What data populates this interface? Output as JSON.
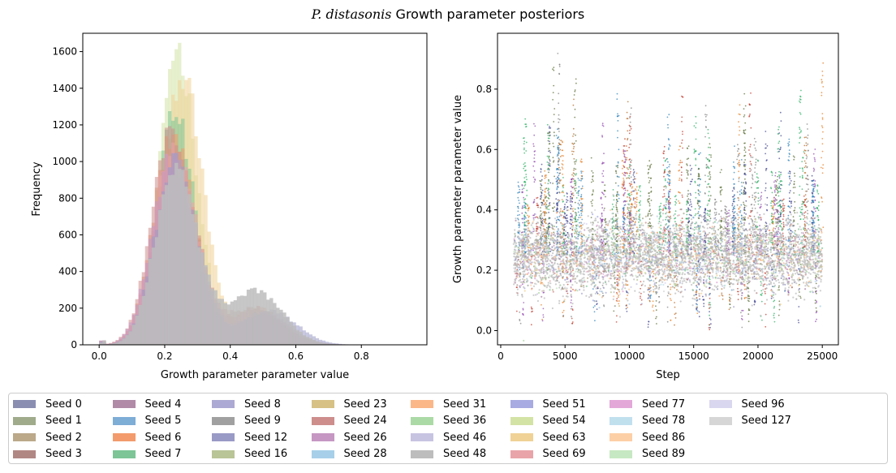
{
  "figure": {
    "title_italic": "P. distasonis",
    "title_rest": " Growth parameter posteriors"
  },
  "chart_data": [
    {
      "type": "histogram",
      "xlabel": "Growth parameter parameter value",
      "ylabel": "Frequency",
      "xlim": [
        -0.05,
        1.0
      ],
      "ylim": [
        0,
        1700
      ],
      "xticks": [
        0.0,
        0.2,
        0.4,
        0.6,
        0.8
      ],
      "xtick_labels": [
        "0.0",
        "0.2",
        "0.4",
        "0.6",
        "0.8"
      ],
      "yticks": [
        0,
        200,
        400,
        600,
        800,
        1000,
        1200,
        1400,
        1600
      ],
      "ytick_labels": [
        "0",
        "200",
        "400",
        "600",
        "800",
        "1000",
        "1200",
        "1400",
        "1600"
      ],
      "bin_width": 0.01,
      "series": [
        {
          "seed": "Seed 54",
          "mode": 0.235,
          "peak": 1630,
          "sd_left": 0.05,
          "sd_right": 0.06,
          "tail_mean": 0.5,
          "tail_peak": 120
        },
        {
          "seed": "Seed 63",
          "mode": 0.25,
          "peak": 1480,
          "sd_left": 0.055,
          "sd_right": 0.065,
          "tail_mean": 0.5,
          "tail_peak": 140
        },
        {
          "seed": "Seed 7",
          "mode": 0.23,
          "peak": 1260,
          "sd_left": 0.055,
          "sd_right": 0.06,
          "tail_mean": 0.48,
          "tail_peak": 140
        },
        {
          "seed": "Seed 6",
          "mode": 0.225,
          "peak": 1150,
          "sd_left": 0.06,
          "sd_right": 0.065,
          "tail_mean": 0.48,
          "tail_peak": 200
        },
        {
          "seed": "Seed 24",
          "mode": 0.22,
          "peak": 1160,
          "sd_left": 0.06,
          "sd_right": 0.07,
          "tail_mean": 0.47,
          "tail_peak": 200
        },
        {
          "seed": "Seed 69",
          "mode": 0.225,
          "peak": 1080,
          "sd_left": 0.06,
          "sd_right": 0.07,
          "tail_mean": 0.48,
          "tail_peak": 180
        },
        {
          "seed": "Seed 26",
          "mode": 0.22,
          "peak": 1020,
          "sd_left": 0.06,
          "sd_right": 0.07,
          "tail_mean": 0.5,
          "tail_peak": 170
        },
        {
          "seed": "Seed 12",
          "mode": 0.23,
          "peak": 1000,
          "sd_left": 0.06,
          "sd_right": 0.07,
          "tail_mean": 0.52,
          "tail_peak": 190
        },
        {
          "seed": "Seed 48",
          "mode": 0.23,
          "peak": 960,
          "sd_left": 0.06,
          "sd_right": 0.07,
          "tail_mean": 0.48,
          "tail_peak": 290
        }
      ]
    },
    {
      "type": "scatter",
      "xlabel": "Step",
      "ylabel": "Growth parameter parameter value",
      "xlim": [
        -250,
        26250
      ],
      "ylim": [
        -0.047,
        0.985
      ],
      "xticks": [
        0,
        5000,
        10000,
        15000,
        20000,
        25000
      ],
      "xtick_labels": [
        "0",
        "5000",
        "10000",
        "15000",
        "20000",
        "25000"
      ],
      "yticks": [
        0.0,
        0.2,
        0.4,
        0.6,
        0.8
      ],
      "ytick_labels": [
        "0.0",
        "0.2",
        "0.4",
        "0.6",
        "0.8"
      ],
      "x_range": [
        1000,
        25000
      ],
      "y_center": 0.25,
      "y_spread": 0.06,
      "spike_max": 0.94
    }
  ],
  "legend": {
    "items": [
      {
        "label": "Seed 0",
        "color": "#8a8fb2"
      },
      {
        "label": "Seed 1",
        "color": "#9fab8b"
      },
      {
        "label": "Seed 2",
        "color": "#bba98a"
      },
      {
        "label": "Seed 3",
        "color": "#b18784"
      },
      {
        "label": "Seed 4",
        "color": "#b08aa7"
      },
      {
        "label": "Seed 5",
        "color": "#7eadd6"
      },
      {
        "label": "Seed 6",
        "color": "#f39b6c"
      },
      {
        "label": "Seed 7",
        "color": "#7dc596"
      },
      {
        "label": "Seed 8",
        "color": "#aca9d4"
      },
      {
        "label": "Seed 9",
        "color": "#a0a0a0"
      },
      {
        "label": "Seed 12",
        "color": "#9a9ac6"
      },
      {
        "label": "Seed 16",
        "color": "#b9c497"
      },
      {
        "label": "Seed 23",
        "color": "#d7c185"
      },
      {
        "label": "Seed 24",
        "color": "#cd8e8c"
      },
      {
        "label": "Seed 26",
        "color": "#c697c3"
      },
      {
        "label": "Seed 28",
        "color": "#a7cfe9"
      },
      {
        "label": "Seed 31",
        "color": "#fbb788"
      },
      {
        "label": "Seed 36",
        "color": "#acdaa6"
      },
      {
        "label": "Seed 46",
        "color": "#c7c4e2"
      },
      {
        "label": "Seed 48",
        "color": "#bdbdbd"
      },
      {
        "label": "Seed 51",
        "color": "#a7abe1"
      },
      {
        "label": "Seed 54",
        "color": "#d3e3a5"
      },
      {
        "label": "Seed 63",
        "color": "#f0d296"
      },
      {
        "label": "Seed 69",
        "color": "#e9a4a9"
      },
      {
        "label": "Seed 77",
        "color": "#e3a8d8"
      },
      {
        "label": "Seed 78",
        "color": "#c1e0ee"
      },
      {
        "label": "Seed 86",
        "color": "#fdcfa6"
      },
      {
        "label": "Seed 89",
        "color": "#c6e8c2"
      },
      {
        "label": "Seed 96",
        "color": "#d9d6ef"
      },
      {
        "label": "Seed 127",
        "color": "#d6d6d6"
      }
    ]
  }
}
